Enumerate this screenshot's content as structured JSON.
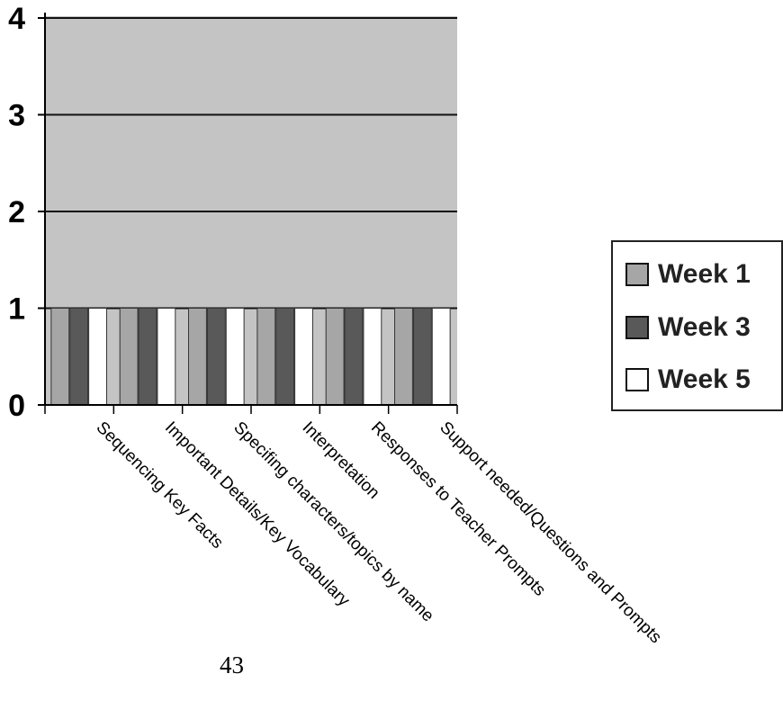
{
  "chart_data": {
    "type": "bar",
    "categories": [
      "Sequencing Key Facts",
      "Important Details/Key Vocabulary",
      "Specifing characters/topics by name",
      "Interpretation",
      "Responses to Teacher Prompts",
      "Support needed/Questions and Prompts"
    ],
    "series": [
      {
        "name": "Week 1",
        "color": "#a6a6a6",
        "values": [
          1,
          1,
          1,
          1,
          1,
          1
        ]
      },
      {
        "name": "Week 3",
        "color": "#595959",
        "values": [
          1,
          1,
          1,
          1,
          1,
          1
        ]
      },
      {
        "name": "Week 5",
        "color": "#ffffff",
        "values": [
          1,
          1,
          1,
          1,
          1,
          1
        ]
      }
    ],
    "ylim": [
      0,
      4
    ],
    "yticks": [
      "0",
      "1",
      "2",
      "3",
      "4"
    ],
    "grid": true,
    "plot_background": "#c4c4c4",
    "legend_position": "right"
  },
  "page": {
    "page_number": "43"
  }
}
